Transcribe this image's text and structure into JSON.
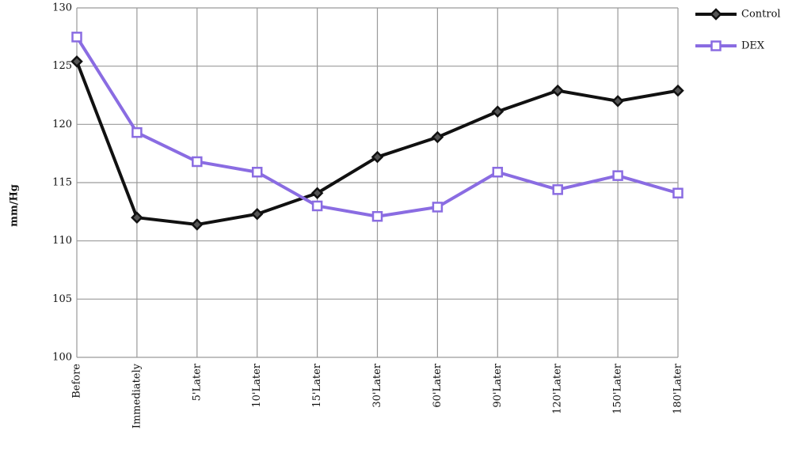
{
  "chart_data": {
    "type": "line",
    "y_label": "mm/Hg",
    "categories": [
      "Before",
      "Immediately",
      "5'Later",
      "10'Later",
      "15'Later",
      "30'Later",
      "60'Later",
      "90'Later",
      "120'Later",
      "150'Later",
      "180'Later"
    ],
    "series": [
      {
        "name": "Control",
        "color": "#111111",
        "marker": "diamond",
        "values": [
          125.4,
          112,
          111.4,
          112.3,
          114.1,
          117.2,
          118.9,
          121.1,
          122.9,
          122,
          122.9
        ]
      },
      {
        "name": "DEX",
        "color": "#8a6ce2",
        "marker": "square",
        "values": [
          127.5,
          119.3,
          116.8,
          115.9,
          113,
          112.1,
          112.9,
          115.9,
          114.4,
          115.6,
          114.1
        ]
      }
    ],
    "ylim": [
      100,
      130
    ],
    "yticks": [
      100,
      105,
      110,
      115,
      120,
      125,
      130
    ],
    "grid": true,
    "legend": "top-right"
  }
}
